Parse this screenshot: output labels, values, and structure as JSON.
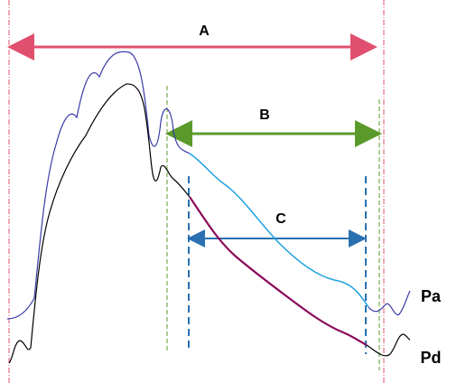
{
  "intervals": [
    {
      "label": "A"
    },
    {
      "label": "B"
    },
    {
      "label": "C"
    }
  ],
  "curves": [
    {
      "label": "Pa"
    },
    {
      "label": "Pd"
    }
  ]
}
